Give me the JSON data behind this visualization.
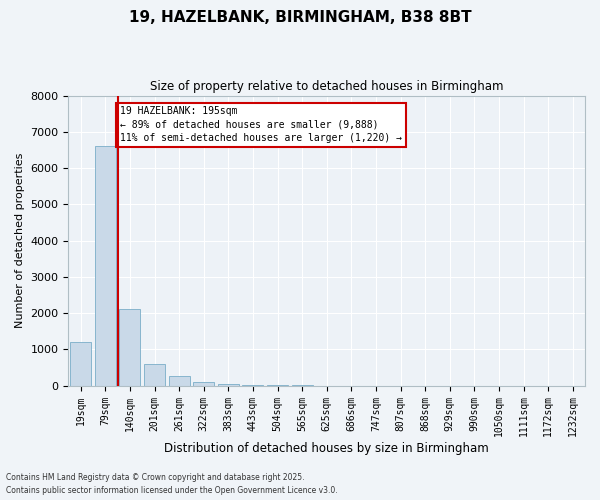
{
  "title1": "19, HAZELBANK, BIRMINGHAM, B38 8BT",
  "title2": "Size of property relative to detached houses in Birmingham",
  "xlabel": "Distribution of detached houses by size in Birmingham",
  "ylabel": "Number of detached properties",
  "categories": [
    "19sqm",
    "79sqm",
    "140sqm",
    "201sqm",
    "261sqm",
    "322sqm",
    "383sqm",
    "443sqm",
    "504sqm",
    "565sqm",
    "625sqm",
    "686sqm",
    "747sqm",
    "807sqm",
    "868sqm",
    "929sqm",
    "990sqm",
    "1050sqm",
    "1111sqm",
    "1172sqm",
    "1232sqm"
  ],
  "values": [
    1200,
    6600,
    2100,
    600,
    270,
    110,
    50,
    20,
    10,
    5,
    2,
    0,
    0,
    0,
    0,
    0,
    0,
    0,
    0,
    0,
    0
  ],
  "bar_color": "#c9d9e8",
  "bar_edge_color": "#7aaec8",
  "vline_color": "#cc0000",
  "annotation_text": "19 HAZELBANK: 195sqm\n← 89% of detached houses are smaller (9,888)\n11% of semi-detached houses are larger (1,220) →",
  "annotation_box_color": "#cc0000",
  "ylim": [
    0,
    8000
  ],
  "yticks": [
    0,
    1000,
    2000,
    3000,
    4000,
    5000,
    6000,
    7000,
    8000
  ],
  "footnote1": "Contains HM Land Registry data © Crown copyright and database right 2025.",
  "footnote2": "Contains public sector information licensed under the Open Government Licence v3.0.",
  "fig_facecolor": "#f0f4f8",
  "ax_facecolor": "#edf2f7"
}
